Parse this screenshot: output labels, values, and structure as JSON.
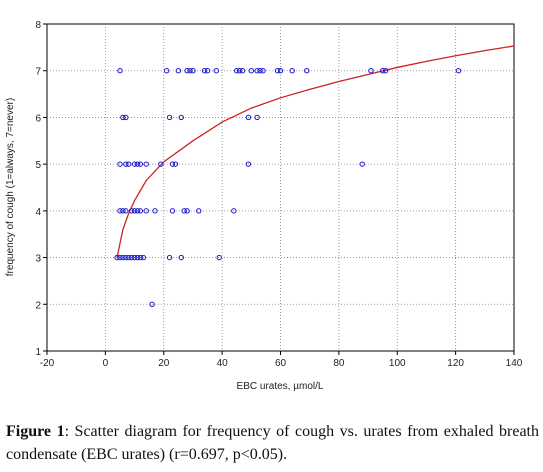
{
  "chart_data": {
    "type": "scatter",
    "title": "",
    "xlabel": "EBC urates, µmol/L",
    "ylabel": "frequency of cough (1=always, 7=never)",
    "xlim": [
      -20,
      140
    ],
    "ylim": [
      1,
      8
    ],
    "xticks": [
      -20,
      0,
      20,
      40,
      60,
      80,
      100,
      120,
      140
    ],
    "yticks": [
      1,
      2,
      3,
      4,
      5,
      6,
      7,
      8
    ],
    "grid": true,
    "marker_color": "#1a1acc",
    "curve_color": "#cc2222",
    "points": [
      {
        "x": 5,
        "y": 7
      },
      {
        "x": 21,
        "y": 7
      },
      {
        "x": 25,
        "y": 7
      },
      {
        "x": 28,
        "y": 7
      },
      {
        "x": 29,
        "y": 7
      },
      {
        "x": 30,
        "y": 7
      },
      {
        "x": 34,
        "y": 7
      },
      {
        "x": 35,
        "y": 7
      },
      {
        "x": 38,
        "y": 7
      },
      {
        "x": 45,
        "y": 7
      },
      {
        "x": 46,
        "y": 7
      },
      {
        "x": 47,
        "y": 7
      },
      {
        "x": 50,
        "y": 7
      },
      {
        "x": 52,
        "y": 7
      },
      {
        "x": 53,
        "y": 7
      },
      {
        "x": 54,
        "y": 7
      },
      {
        "x": 59,
        "y": 7
      },
      {
        "x": 60,
        "y": 7
      },
      {
        "x": 64,
        "y": 7
      },
      {
        "x": 69,
        "y": 7
      },
      {
        "x": 91,
        "y": 7
      },
      {
        "x": 95,
        "y": 7
      },
      {
        "x": 96,
        "y": 7
      },
      {
        "x": 121,
        "y": 7
      },
      {
        "x": 6,
        "y": 6
      },
      {
        "x": 7,
        "y": 6
      },
      {
        "x": 22,
        "y": 6
      },
      {
        "x": 26,
        "y": 6
      },
      {
        "x": 49,
        "y": 6
      },
      {
        "x": 52,
        "y": 6
      },
      {
        "x": 5,
        "y": 5
      },
      {
        "x": 7,
        "y": 5
      },
      {
        "x": 8,
        "y": 5
      },
      {
        "x": 10,
        "y": 5
      },
      {
        "x": 11,
        "y": 5
      },
      {
        "x": 12,
        "y": 5
      },
      {
        "x": 14,
        "y": 5
      },
      {
        "x": 19,
        "y": 5
      },
      {
        "x": 23,
        "y": 5
      },
      {
        "x": 24,
        "y": 5
      },
      {
        "x": 49,
        "y": 5
      },
      {
        "x": 88,
        "y": 5
      },
      {
        "x": 5,
        "y": 4
      },
      {
        "x": 6,
        "y": 4
      },
      {
        "x": 7,
        "y": 4
      },
      {
        "x": 9,
        "y": 4
      },
      {
        "x": 10,
        "y": 4
      },
      {
        "x": 11,
        "y": 4
      },
      {
        "x": 12,
        "y": 4
      },
      {
        "x": 14,
        "y": 4
      },
      {
        "x": 17,
        "y": 4
      },
      {
        "x": 23,
        "y": 4
      },
      {
        "x": 27,
        "y": 4
      },
      {
        "x": 28,
        "y": 4
      },
      {
        "x": 32,
        "y": 4
      },
      {
        "x": 44,
        "y": 4
      },
      {
        "x": 4,
        "y": 3
      },
      {
        "x": 5,
        "y": 3
      },
      {
        "x": 6,
        "y": 3
      },
      {
        "x": 7,
        "y": 3
      },
      {
        "x": 8,
        "y": 3
      },
      {
        "x": 9,
        "y": 3
      },
      {
        "x": 10,
        "y": 3
      },
      {
        "x": 11,
        "y": 3
      },
      {
        "x": 12,
        "y": 3
      },
      {
        "x": 13,
        "y": 3
      },
      {
        "x": 22,
        "y": 3
      },
      {
        "x": 26,
        "y": 3
      },
      {
        "x": 39,
        "y": 3
      },
      {
        "x": 16,
        "y": 2
      }
    ],
    "fit_curve": {
      "x": [
        4,
        6,
        8,
        10,
        14,
        20,
        30,
        40,
        50,
        60,
        70,
        80,
        90,
        100,
        110,
        120,
        130,
        140
      ],
      "y": [
        3.0,
        3.6,
        3.95,
        4.22,
        4.65,
        5.05,
        5.5,
        5.9,
        6.2,
        6.42,
        6.6,
        6.77,
        6.92,
        7.07,
        7.2,
        7.32,
        7.43,
        7.53
      ]
    }
  },
  "caption": {
    "label": "Figure 1",
    "text": ": Scatter diagram for frequency of cough vs. urates from exhaled breath condensate (EBC urates) (r=0.697, p<0.05)."
  }
}
